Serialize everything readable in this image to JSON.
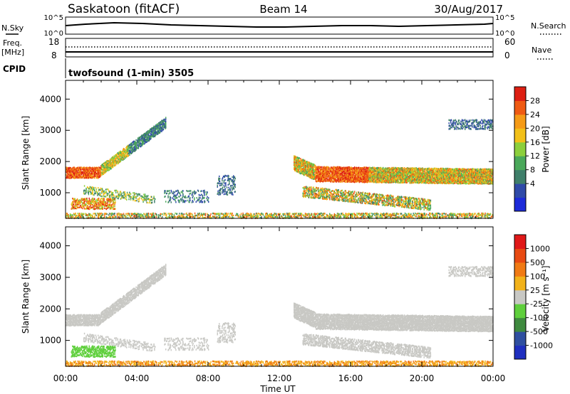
{
  "header": {
    "station": "Saskatoon (fitACF)",
    "beam": "Beam 14",
    "date": "30/Aug/2017"
  },
  "strips": {
    "nsky_label": "N.Sky",
    "nsky_ticks": [
      "10^5",
      "10^0"
    ],
    "nsearch_label": "N.Search",
    "nsearch_ticks": [
      "10^5",
      "10^0"
    ],
    "freq_label": "Freq.",
    "freq_unit": "[MHz]",
    "freq_ticks": [
      "18",
      "8"
    ],
    "nave_label": "Nave",
    "nave_ticks": [
      "60",
      "0"
    ],
    "cpid_label": "CPID",
    "cpid_text": "twofsound (1-min) 3505"
  },
  "chart_data": [
    {
      "type": "heatmap",
      "name": "power",
      "ylabel": "Slant Range [km]",
      "yticks": [
        "4000",
        "3000",
        "2000",
        "1000"
      ],
      "ylim": [
        180,
        4600
      ],
      "colorbar_label": "Power [dB]",
      "colorbar_ticks": [
        "28",
        "24",
        "20",
        "16",
        "12",
        "8",
        "4"
      ],
      "colors": [
        "#1d2bd9",
        "#2f4aa8",
        "#3f7f6a",
        "#4aa85a",
        "#8ccf3c",
        "#f2c019",
        "#f59a16",
        "#ef5a12",
        "#dd1f12"
      ],
      "regions": [
        {
          "t": [
            0.0,
            5.5
          ],
          "r": [
            1450,
            3250
          ],
          "desc": "rising echo band early"
        },
        {
          "t": [
            12.8,
            24.0
          ],
          "r": [
            1300,
            2100
          ],
          "desc": "main band afternoon"
        },
        {
          "t": [
            13.5,
            20.0
          ],
          "r": [
            350,
            1100
          ],
          "desc": "lower band afternoon"
        }
      ]
    },
    {
      "type": "heatmap",
      "name": "velocity",
      "ylabel": "Slant Range [km]",
      "yticks": [
        "4000",
        "3000",
        "2000",
        "1000"
      ],
      "ylim": [
        180,
        4600
      ],
      "xlabel": "Time UT",
      "xticks": [
        "00:00",
        "04:00",
        "08:00",
        "12:00",
        "16:00",
        "20:00",
        "00:00"
      ],
      "xlim": [
        0,
        24
      ],
      "colorbar_label": "Velocity [m s⁻¹]",
      "colorbar_ticks": [
        "1000",
        "500",
        "100",
        "25",
        "-25",
        "-100",
        "-500",
        "-1000"
      ],
      "colors": [
        "#1f2fbf",
        "#2f4fa0",
        "#3f8a3f",
        "#5fcf3c",
        "#c8c8c4",
        "#f2b21a",
        "#f07a14",
        "#e84a12",
        "#e01818"
      ]
    }
  ]
}
